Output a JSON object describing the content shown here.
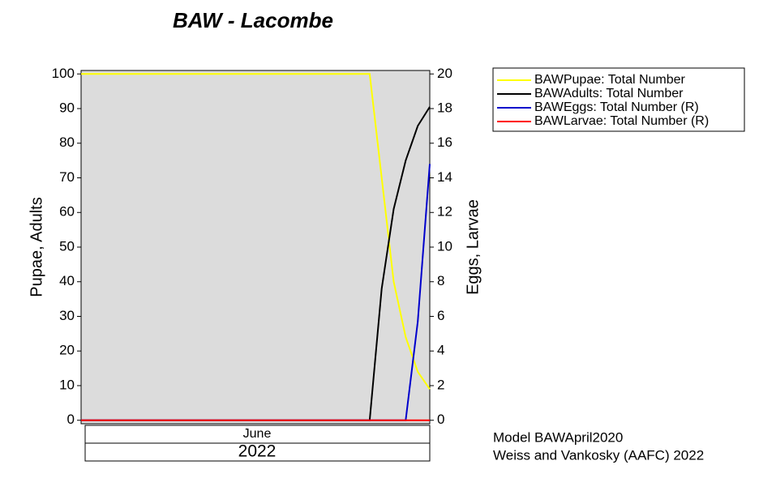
{
  "chart_data": {
    "type": "line",
    "title": "BAW - Lacombe",
    "y_label": "Pupae, Adults",
    "y2_label": "Eggs, Larvae",
    "x_month_label": "June",
    "x_year_label": "2022",
    "footnotes": [
      "Model BAWApril2020",
      "Weiss and Vankosky  (AAFC) 2022"
    ],
    "categories": [
      null,
      null,
      null,
      null,
      null,
      null,
      null,
      null,
      null,
      null,
      null,
      null,
      null,
      null,
      null,
      null,
      null,
      null,
      null,
      null,
      null,
      null,
      null,
      null,
      null,
      null,
      null,
      null,
      null,
      null
    ],
    "ylim": [
      -1,
      101
    ],
    "yticks": [
      0,
      10,
      20,
      30,
      40,
      50,
      60,
      70,
      80,
      90,
      100
    ],
    "y2lim": [
      -0.2,
      20.2
    ],
    "y2ticks": [
      0,
      2,
      4,
      6,
      8,
      10,
      12,
      14,
      16,
      18,
      20
    ],
    "background": "#dcdcdc",
    "series": [
      {
        "name": "BAWPupae: Total Number",
        "color": "#ffff00",
        "values": [
          100,
          100,
          100,
          100,
          100,
          100,
          100,
          100,
          100,
          100,
          100,
          100,
          100,
          100,
          100,
          100,
          100,
          100,
          100,
          100,
          100,
          100,
          100,
          100,
          100,
          70,
          40,
          24,
          14,
          9
        ]
      },
      {
        "name": "BAWAdults: Total Number",
        "color": "#000000",
        "values": [
          0,
          0,
          0,
          0,
          0,
          0,
          0,
          0,
          0,
          0,
          0,
          0,
          0,
          0,
          0,
          0,
          0,
          0,
          0,
          0,
          0,
          0,
          0,
          0,
          0,
          38,
          61,
          75,
          85,
          90.5
        ]
      },
      {
        "name": "BAWEggs: Total Number (R)",
        "color": "#0000cc",
        "axis": "y2",
        "values": [
          0,
          0,
          0,
          0,
          0,
          0,
          0,
          0,
          0,
          0,
          0,
          0,
          0,
          0,
          0,
          0,
          0,
          0,
          0,
          0,
          0,
          0,
          0,
          0,
          0,
          0,
          0,
          0,
          5.7,
          14.8
        ]
      },
      {
        "name": "BAWLarvae: Total Number (R)",
        "color": "#ff0000",
        "axis": "y2",
        "values": [
          0,
          0,
          0,
          0,
          0,
          0,
          0,
          0,
          0,
          0,
          0,
          0,
          0,
          0,
          0,
          0,
          0,
          0,
          0,
          0,
          0,
          0,
          0,
          0,
          0,
          0,
          0,
          0,
          0,
          0
        ]
      }
    ]
  }
}
